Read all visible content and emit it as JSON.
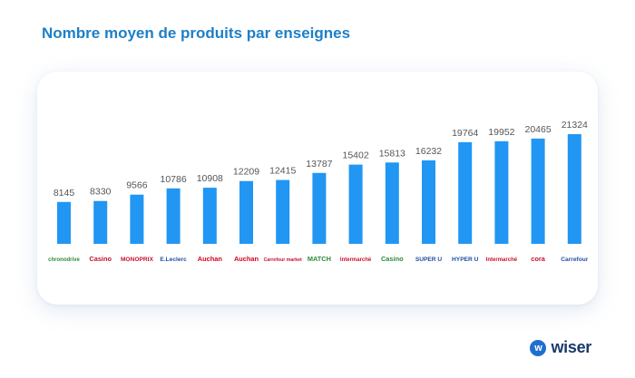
{
  "title": "Nombre moyen de produits par enseignes",
  "chart_data": {
    "type": "bar",
    "title": "Nombre moyen de produits par enseignes",
    "xlabel": "",
    "ylabel": "",
    "ylim": [
      0,
      22000
    ],
    "grid": false,
    "bar_color": "#2196f3",
    "categories": [
      "chronodrive",
      "Casino",
      "MONOPRIX",
      "E.Leclerc",
      "Auchan",
      "Auchan",
      "Carrefour market",
      "MATCH",
      "Intermarché super",
      "Casino",
      "SUPER U",
      "HYPER U",
      "Intermarché hyper",
      "cora",
      "Carrefour"
    ],
    "values": [
      8145,
      8330,
      9566,
      10786,
      10908,
      12209,
      12415,
      13787,
      15402,
      15813,
      16232,
      19764,
      19952,
      20465,
      21324
    ],
    "value_labels": [
      "8145",
      "8330",
      "9566",
      "10786",
      "10908",
      "12209",
      "12415",
      "13787",
      "15402",
      "15813",
      "16232",
      "19764",
      "19952",
      "20465",
      "21324"
    ],
    "logos": [
      {
        "text": "chronodrive",
        "color": "#2e8b3a"
      },
      {
        "text": "Casino",
        "color": "#c8102e"
      },
      {
        "text": "MONOPRIX",
        "color": "#c8102e"
      },
      {
        "text": "E.Leclerc",
        "color": "#1d4fa3"
      },
      {
        "text": "Auchan",
        "color": "#d6001c"
      },
      {
        "text": "Auchan",
        "color": "#d6001c"
      },
      {
        "text": "Carrefour market",
        "color": "#c8102e"
      },
      {
        "text": "MATCH",
        "color": "#2e8b3a"
      },
      {
        "text": "Intermarché",
        "color": "#c8102e"
      },
      {
        "text": "Casino",
        "color": "#2e8b3a"
      },
      {
        "text": "SUPER U",
        "color": "#1d4fa3"
      },
      {
        "text": "HYPER U",
        "color": "#1d4fa3"
      },
      {
        "text": "Intermarché",
        "color": "#c8102e"
      },
      {
        "text": "cora",
        "color": "#c8102e"
      },
      {
        "text": "Carrefour",
        "color": "#1d4fa3"
      }
    ]
  },
  "brand": {
    "name": "wiser",
    "icon": "w",
    "icon_name": "wiser-logo-icon"
  }
}
